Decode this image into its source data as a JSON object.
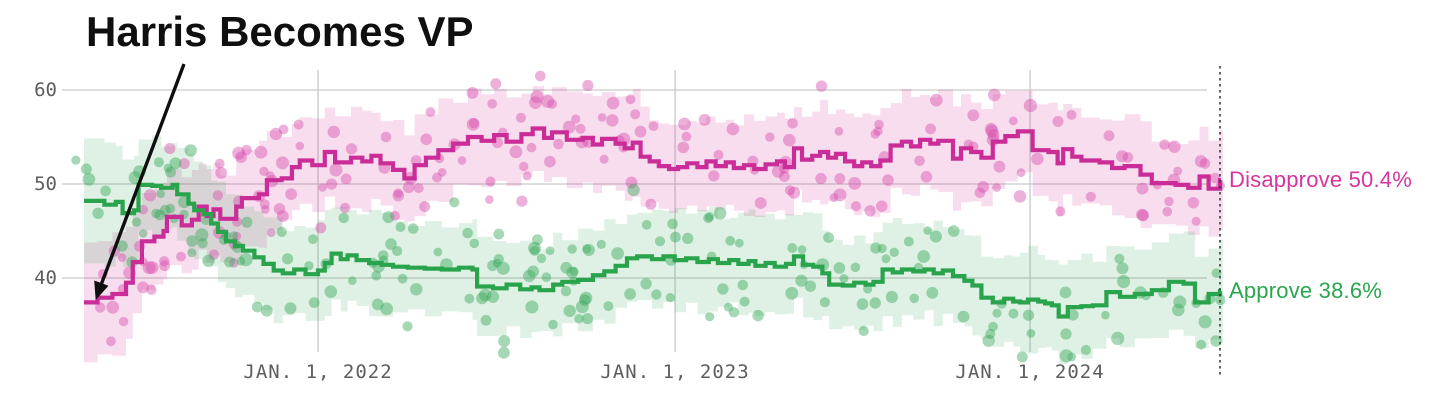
{
  "annotation": {
    "title": "Harris Becomes VP"
  },
  "chart_data": {
    "type": "line",
    "title": "Harris Becomes VP",
    "subtitle": "",
    "ylabel": "",
    "xlabel": "",
    "grid": true,
    "ylim": [
      31,
      62
    ],
    "y_ticks": [
      {
        "label": "60",
        "value": 60
      },
      {
        "label": "50",
        "value": 50
      },
      {
        "label": "40",
        "value": 40
      }
    ],
    "x_ticks": [
      {
        "label": "JAN. 1, 2022",
        "f": 0.206
      },
      {
        "label": "JAN. 1, 2023",
        "f": 0.5203
      },
      {
        "label": "JAN. 1, 2024",
        "f": 0.8328
      }
    ],
    "colors": {
      "disapprove_line": "#cb2d98",
      "disapprove_label": "#d6359f",
      "approve_line": "#2aa34d",
      "approve_label": "#28a74d",
      "gridline": "#c9c9c9",
      "tick_text": "#5d5d5d",
      "annotation": "#0f0f0f",
      "end_rule": "#3a3a3a"
    },
    "series": [
      {
        "name": "Disapprove",
        "end_label": "Disapprove 50.4%",
        "final_value": 50.4,
        "color": "#cb2d98",
        "dot_color": "#d84fae",
        "points": [
          [
            0,
            37.4
          ],
          [
            0.012,
            37.9
          ],
          [
            0.025,
            38.3
          ],
          [
            0.037,
            39.5
          ],
          [
            0.043,
            41.7
          ],
          [
            0.051,
            43.9
          ],
          [
            0.062,
            44.4
          ],
          [
            0.07,
            45.0
          ],
          [
            0.073,
            46.5
          ],
          [
            0.086,
            45.6
          ],
          [
            0.095,
            46.2
          ],
          [
            0.101,
            47.6
          ],
          [
            0.108,
            46.6
          ],
          [
            0.114,
            47.3
          ],
          [
            0.12,
            46.3
          ],
          [
            0.134,
            47.6
          ],
          [
            0.139,
            48.5
          ],
          [
            0.154,
            48.9
          ],
          [
            0.161,
            50.4
          ],
          [
            0.174,
            50.6
          ],
          [
            0.183,
            51.8
          ],
          [
            0.19,
            52.5
          ],
          [
            0.201,
            52.0
          ],
          [
            0.212,
            53.4
          ],
          [
            0.221,
            52.3
          ],
          [
            0.235,
            52.8
          ],
          [
            0.245,
            52.4
          ],
          [
            0.253,
            53.0
          ],
          [
            0.261,
            52.2
          ],
          [
            0.272,
            51.5
          ],
          [
            0.282,
            50.6
          ],
          [
            0.291,
            52.0
          ],
          [
            0.301,
            52.8
          ],
          [
            0.312,
            53.6
          ],
          [
            0.325,
            54.3
          ],
          [
            0.338,
            55.0
          ],
          [
            0.35,
            54.6
          ],
          [
            0.361,
            55.2
          ],
          [
            0.372,
            54.5
          ],
          [
            0.385,
            55.3
          ],
          [
            0.395,
            55.9
          ],
          [
            0.405,
            54.9
          ],
          [
            0.412,
            55.5
          ],
          [
            0.425,
            54.7
          ],
          [
            0.439,
            54.9
          ],
          [
            0.448,
            54.2
          ],
          [
            0.456,
            54.8
          ],
          [
            0.468,
            54.3
          ],
          [
            0.476,
            53.8
          ],
          [
            0.483,
            54.4
          ],
          [
            0.49,
            52.9
          ],
          [
            0.498,
            52.4
          ],
          [
            0.506,
            51.9
          ],
          [
            0.515,
            51.6
          ],
          [
            0.523,
            51.8
          ],
          [
            0.531,
            52.2
          ],
          [
            0.54,
            51.8
          ],
          [
            0.548,
            52.4
          ],
          [
            0.556,
            51.9
          ],
          [
            0.565,
            52.3
          ],
          [
            0.572,
            51.7
          ],
          [
            0.581,
            52.0
          ],
          [
            0.59,
            51.6
          ],
          [
            0.6,
            52.1
          ],
          [
            0.61,
            52.4
          ],
          [
            0.617,
            51.8
          ],
          [
            0.625,
            53.8
          ],
          [
            0.632,
            52.6
          ],
          [
            0.641,
            53.0
          ],
          [
            0.648,
            53.4
          ],
          [
            0.655,
            52.8
          ],
          [
            0.662,
            53.2
          ],
          [
            0.67,
            52.4
          ],
          [
            0.678,
            51.9
          ],
          [
            0.685,
            52.3
          ],
          [
            0.693,
            51.9
          ],
          [
            0.701,
            52.5
          ],
          [
            0.71,
            54.1
          ],
          [
            0.72,
            54.5
          ],
          [
            0.728,
            54.0
          ],
          [
            0.736,
            54.7
          ],
          [
            0.745,
            54.3
          ],
          [
            0.752,
            54.6
          ],
          [
            0.765,
            52.7
          ],
          [
            0.772,
            53.8
          ],
          [
            0.781,
            53.4
          ],
          [
            0.79,
            52.8
          ],
          [
            0.8,
            54.5
          ],
          [
            0.811,
            55.1
          ],
          [
            0.822,
            55.6
          ],
          [
            0.835,
            53.6
          ],
          [
            0.849,
            53.4
          ],
          [
            0.857,
            52.2
          ],
          [
            0.862,
            53.7
          ],
          [
            0.87,
            52.9
          ],
          [
            0.878,
            52.5
          ],
          [
            0.894,
            52.3
          ],
          [
            0.905,
            51.7
          ],
          [
            0.916,
            51.9
          ],
          [
            0.93,
            51.0
          ],
          [
            0.94,
            50.1
          ],
          [
            0.961,
            49.9
          ],
          [
            0.972,
            49.6
          ],
          [
            0.982,
            50.8
          ],
          [
            0.99,
            49.5
          ],
          [
            1,
            50.4
          ]
        ]
      },
      {
        "name": "Approve",
        "end_label": "Approve 38.6%",
        "final_value": 38.6,
        "color": "#2aa34d",
        "dot_color": "#3aa85b",
        "points": [
          [
            0,
            48.2
          ],
          [
            0.018,
            47.8
          ],
          [
            0.028,
            48.1
          ],
          [
            0.034,
            46.9
          ],
          [
            0.044,
            47.2
          ],
          [
            0.048,
            49.9
          ],
          [
            0.06,
            49.8
          ],
          [
            0.068,
            49.6
          ],
          [
            0.078,
            49.9
          ],
          [
            0.082,
            48.9
          ],
          [
            0.092,
            47.9
          ],
          [
            0.097,
            47.2
          ],
          [
            0.105,
            46.8
          ],
          [
            0.112,
            45.8
          ],
          [
            0.118,
            44.9
          ],
          [
            0.125,
            43.9
          ],
          [
            0.133,
            43.4
          ],
          [
            0.14,
            42.9
          ],
          [
            0.15,
            42.2
          ],
          [
            0.158,
            41.5
          ],
          [
            0.167,
            40.8
          ],
          [
            0.175,
            40.5
          ],
          [
            0.185,
            40.9
          ],
          [
            0.195,
            40.4
          ],
          [
            0.206,
            40.8
          ],
          [
            0.212,
            41.6
          ],
          [
            0.218,
            42.6
          ],
          [
            0.226,
            42.0
          ],
          [
            0.232,
            42.4
          ],
          [
            0.24,
            41.9
          ],
          [
            0.251,
            41.6
          ],
          [
            0.262,
            41.4
          ],
          [
            0.272,
            41.2
          ],
          [
            0.285,
            41.1
          ],
          [
            0.3,
            41.0
          ],
          [
            0.315,
            40.9
          ],
          [
            0.33,
            41.1
          ],
          [
            0.342,
            40.9
          ],
          [
            0.346,
            39.1
          ],
          [
            0.36,
            38.9
          ],
          [
            0.372,
            39.3
          ],
          [
            0.384,
            38.8
          ],
          [
            0.394,
            39.0
          ],
          [
            0.401,
            38.7
          ],
          [
            0.413,
            39.3
          ],
          [
            0.421,
            39.6
          ],
          [
            0.435,
            39.8
          ],
          [
            0.448,
            40.3
          ],
          [
            0.458,
            40.7
          ],
          [
            0.468,
            41.3
          ],
          [
            0.478,
            42.1
          ],
          [
            0.487,
            42.3
          ],
          [
            0.5,
            42.0
          ],
          [
            0.51,
            42.3
          ],
          [
            0.52,
            41.9
          ],
          [
            0.53,
            42.1
          ],
          [
            0.54,
            41.7
          ],
          [
            0.55,
            42.0
          ],
          [
            0.558,
            41.6
          ],
          [
            0.568,
            41.9
          ],
          [
            0.576,
            41.5
          ],
          [
            0.585,
            41.8
          ],
          [
            0.591,
            41.3
          ],
          [
            0.6,
            41.6
          ],
          [
            0.608,
            41.2
          ],
          [
            0.618,
            41.5
          ],
          [
            0.625,
            42.3
          ],
          [
            0.633,
            41.4
          ],
          [
            0.642,
            41.2
          ],
          [
            0.65,
            40.5
          ],
          [
            0.656,
            39.3
          ],
          [
            0.668,
            39.2
          ],
          [
            0.678,
            39.5
          ],
          [
            0.688,
            39.3
          ],
          [
            0.695,
            39.6
          ],
          [
            0.703,
            40.9
          ],
          [
            0.712,
            40.6
          ],
          [
            0.72,
            40.9
          ],
          [
            0.73,
            40.7
          ],
          [
            0.74,
            40.9
          ],
          [
            0.748,
            40.5
          ],
          [
            0.756,
            40.8
          ],
          [
            0.765,
            40.2
          ],
          [
            0.775,
            39.7
          ],
          [
            0.782,
            39.2
          ],
          [
            0.79,
            37.9
          ],
          [
            0.8,
            37.4
          ],
          [
            0.81,
            37.8
          ],
          [
            0.818,
            37.5
          ],
          [
            0.824,
            37.4
          ],
          [
            0.831,
            37.7
          ],
          [
            0.84,
            37.5
          ],
          [
            0.846,
            37.3
          ],
          [
            0.852,
            37.1
          ],
          [
            0.858,
            35.9
          ],
          [
            0.866,
            36.9
          ],
          [
            0.878,
            37.0
          ],
          [
            0.888,
            37.1
          ],
          [
            0.9,
            38.5
          ],
          [
            0.912,
            38.0
          ],
          [
            0.925,
            38.3
          ],
          [
            0.94,
            38.7
          ],
          [
            0.955,
            39.6
          ],
          [
            0.968,
            39.4
          ],
          [
            0.978,
            37.4
          ],
          [
            0.99,
            38.3
          ],
          [
            1,
            38.6
          ]
        ]
      }
    ],
    "band": {
      "half_width": 4.3,
      "jitter": 1.5,
      "early_widen": 1.8,
      "opacity_pink": 0.16,
      "opacity_green": 0.15
    },
    "scatter": {
      "count_per_series": 195,
      "spread": 5.3,
      "radius_min": 4.3,
      "radius_max": 6.6,
      "opacity": 0.45,
      "seed": 1337
    },
    "end_rule_f": 1.0,
    "legend_position": "right-of-line-ends"
  }
}
